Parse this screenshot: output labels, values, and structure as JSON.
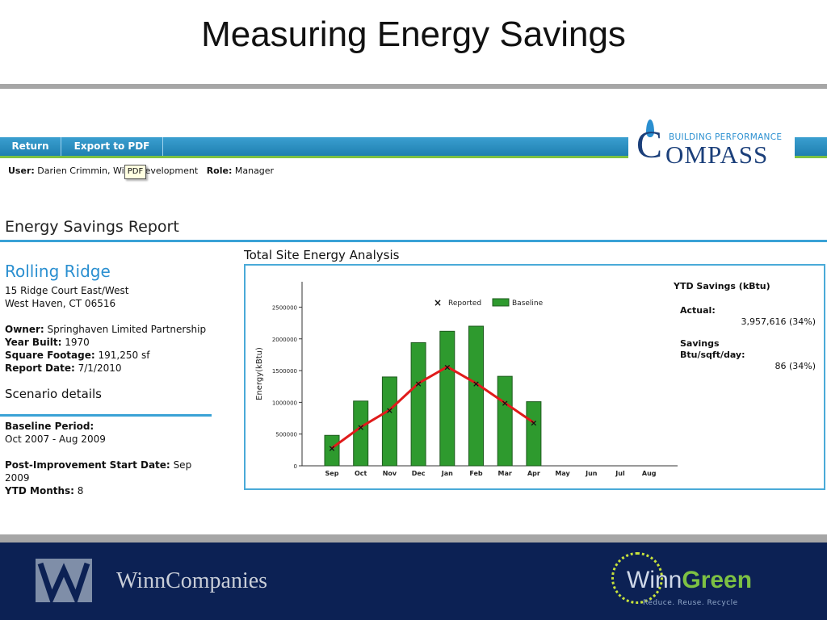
{
  "slide": {
    "title": "Measuring Energy Savings"
  },
  "nav": {
    "return_label": "Return",
    "export_label": "Export to PDF"
  },
  "logo": {
    "small_text": "BUILDING PERFORMANCE",
    "big_text": "OMPASS",
    "c_letter": "C"
  },
  "user": {
    "user_label": "User:",
    "user_value": "Darien Crimmin,  Winn Development",
    "role_label": "Role:",
    "role_value": "Manager",
    "tooltip": "PDF"
  },
  "report": {
    "title": "Energy Savings Report",
    "property_name": "Rolling Ridge",
    "address_line1": "15 Ridge Court East/West",
    "address_line2": "West Haven, CT 06516",
    "owner_label": "Owner:",
    "owner_value": "Springhaven Limited Partnership",
    "year_label": "Year Built:",
    "year_value": "1970",
    "sqft_label": "Square Footage:",
    "sqft_value": "191,250 sf",
    "date_label": "Report Date:",
    "date_value": "7/1/2010",
    "scenario_title": "Scenario details",
    "baseline_label": "Baseline Period:",
    "baseline_value": "Oct 2007 - Aug 2009",
    "post_label": "Post-Improvement Start Date:",
    "post_value": "Sep 2009",
    "ytd_months_label": "YTD Months:",
    "ytd_months_value": "8"
  },
  "chart_title": "Total Site Energy Analysis",
  "ytd": {
    "title": "YTD Savings (kBtu)",
    "actual_label": "Actual:",
    "actual_value": "3,957,616  (34%)",
    "savings_label_1": "Savings",
    "savings_label_2": "Btu/sqft/day:",
    "savings_value": "86  (34%)"
  },
  "chart_data": {
    "type": "bar",
    "title": "Total Site Energy Analysis",
    "ylabel": "Energy(kBtu)",
    "xlabel": "",
    "categories": [
      "Sep",
      "Oct",
      "Nov",
      "Dec",
      "Jan",
      "Feb",
      "Mar",
      "Apr",
      "May",
      "Jun",
      "Jul",
      "Aug"
    ],
    "y_ticks": [
      "0",
      "500000",
      "1000000",
      "1500000",
      "2000000",
      "2500000"
    ],
    "ylim": [
      0,
      2900000
    ],
    "legend_placement": "top-center",
    "series": [
      {
        "name": "Baseline",
        "kind": "bar",
        "color": "#2e9a2e",
        "values": [
          480000,
          1020000,
          1400000,
          1940000,
          2120000,
          2200000,
          1410000,
          1010000,
          null,
          null,
          null,
          null
        ]
      },
      {
        "name": "Reported",
        "kind": "line-marker",
        "color": "#e01b1b",
        "values": [
          280000,
          610000,
          880000,
          1300000,
          1560000,
          1300000,
          990000,
          680000,
          null,
          null,
          null,
          null
        ]
      }
    ]
  },
  "colors": {
    "accent_blue": "#3aa2d6",
    "nav_green": "#7dc143",
    "footer_navy": "#0c2154"
  },
  "footer": {
    "winn_companies": "WinnCompanies",
    "winngreen_winn": "Winn",
    "winngreen_green": "Green",
    "winngreen_tag": "Reduce. Reuse. Recycle"
  }
}
